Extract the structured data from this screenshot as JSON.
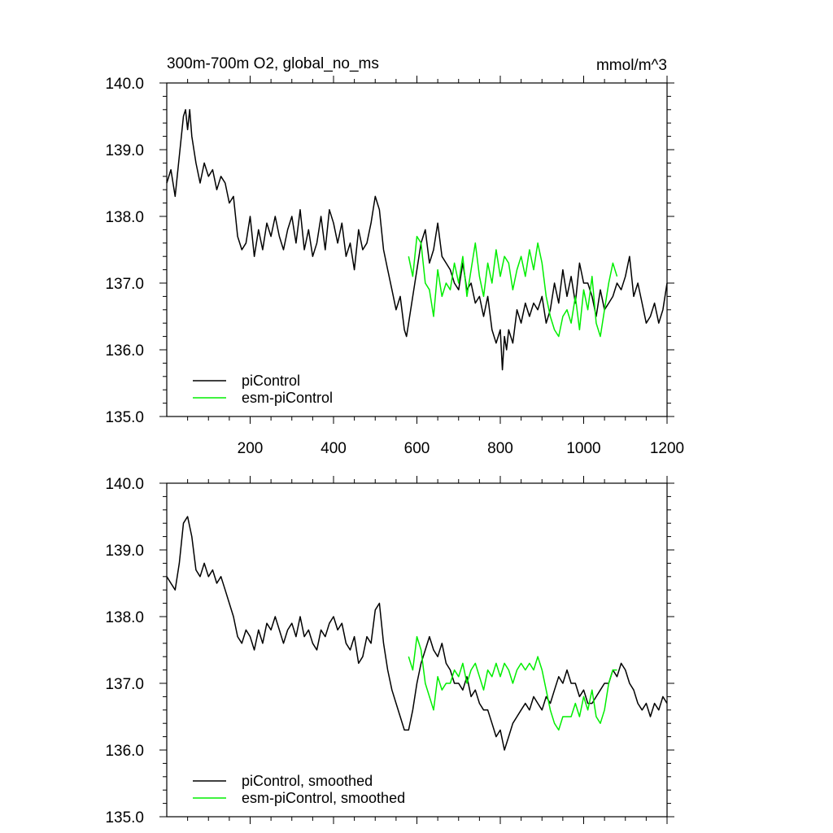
{
  "chart_data": [
    {
      "type": "line",
      "title": "300m-700m O2, global_no_ms",
      "units": "mmol/m^3",
      "xlabel": "",
      "ylabel": "",
      "xlim": [
        0,
        1200
      ],
      "ylim": [
        135.0,
        140.0
      ],
      "xticks": [
        200,
        400,
        600,
        800,
        1000,
        1200
      ],
      "xtick_labels": [
        "200",
        "400",
        "600",
        "800",
        "1000",
        "1200"
      ],
      "yticks": [
        135,
        136,
        137,
        138,
        139,
        140
      ],
      "ytick_labels": [
        "135.0",
        "136.0",
        "137.0",
        "138.0",
        "139.0",
        "140.0"
      ],
      "legend_placement": "bottom-left",
      "grid": false,
      "series": [
        {
          "name": "piControl",
          "color": "#000000",
          "x": [
            0,
            10,
            20,
            30,
            40,
            45,
            50,
            55,
            60,
            70,
            80,
            90,
            100,
            110,
            120,
            130,
            140,
            150,
            160,
            170,
            180,
            190,
            200,
            210,
            220,
            230,
            240,
            250,
            260,
            270,
            280,
            290,
            300,
            310,
            320,
            330,
            340,
            350,
            360,
            370,
            380,
            390,
            400,
            410,
            420,
            430,
            440,
            450,
            460,
            470,
            480,
            490,
            500,
            510,
            520,
            530,
            540,
            550,
            560,
            570,
            575,
            580,
            590,
            600,
            610,
            620,
            630,
            640,
            650,
            660,
            670,
            680,
            690,
            700,
            710,
            720,
            730,
            740,
            750,
            760,
            770,
            780,
            790,
            800,
            805,
            810,
            815,
            820,
            830,
            840,
            850,
            860,
            870,
            880,
            890,
            900,
            910,
            920,
            930,
            940,
            950,
            960,
            970,
            980,
            990,
            1000,
            1010,
            1020,
            1030,
            1040,
            1050,
            1060,
            1070,
            1080,
            1090,
            1100,
            1110,
            1120,
            1130,
            1140,
            1150,
            1160,
            1170,
            1180,
            1190,
            1200
          ],
          "values": [
            138.5,
            138.7,
            138.3,
            138.9,
            139.5,
            139.6,
            139.3,
            139.6,
            139.2,
            138.8,
            138.5,
            138.8,
            138.6,
            138.7,
            138.4,
            138.6,
            138.5,
            138.2,
            138.3,
            137.7,
            137.5,
            137.6,
            138.0,
            137.4,
            137.8,
            137.5,
            137.9,
            137.7,
            138.0,
            137.7,
            137.5,
            137.8,
            138.0,
            137.6,
            138.1,
            137.5,
            137.8,
            137.4,
            137.6,
            138.0,
            137.5,
            138.1,
            137.9,
            137.6,
            137.9,
            137.4,
            137.6,
            137.2,
            137.8,
            137.5,
            137.6,
            137.9,
            138.3,
            138.1,
            137.5,
            137.2,
            136.9,
            136.6,
            136.8,
            136.3,
            136.2,
            136.4,
            136.8,
            137.2,
            137.6,
            137.8,
            137.3,
            137.5,
            137.9,
            137.4,
            137.3,
            137.2,
            137.0,
            136.9,
            137.3,
            136.9,
            137.0,
            136.7,
            136.8,
            136.5,
            136.8,
            136.3,
            136.1,
            136.3,
            135.7,
            136.2,
            136.0,
            136.3,
            136.1,
            136.6,
            136.4,
            136.7,
            136.5,
            136.7,
            136.6,
            136.8,
            136.4,
            136.6,
            137.0,
            136.7,
            137.2,
            136.8,
            137.1,
            136.7,
            137.3,
            137.0,
            137.0,
            136.8,
            136.5,
            136.9,
            136.6,
            136.7,
            136.8,
            137.0,
            136.9,
            137.1,
            137.4,
            136.8,
            137.0,
            136.7,
            136.4,
            136.5,
            136.7,
            136.4,
            136.6,
            137.0
          ]
        },
        {
          "name": "esm-piControl",
          "color": "#00ee00",
          "x": [
            580,
            590,
            600,
            610,
            620,
            630,
            640,
            650,
            660,
            670,
            680,
            690,
            700,
            710,
            720,
            730,
            740,
            750,
            760,
            770,
            780,
            790,
            800,
            810,
            820,
            830,
            840,
            850,
            860,
            870,
            880,
            890,
            900,
            910,
            920,
            930,
            940,
            950,
            960,
            970,
            980,
            990,
            1000,
            1010,
            1020,
            1030,
            1040,
            1050,
            1060,
            1070,
            1080
          ],
          "values": [
            137.4,
            137.1,
            137.7,
            137.6,
            137.0,
            136.9,
            136.5,
            137.2,
            136.8,
            137.0,
            136.9,
            137.3,
            137.0,
            137.4,
            136.8,
            137.2,
            137.6,
            137.1,
            136.8,
            137.3,
            137.0,
            137.5,
            137.1,
            137.4,
            137.3,
            136.9,
            137.2,
            137.4,
            137.1,
            137.5,
            137.2,
            137.6,
            137.3,
            136.8,
            136.5,
            136.3,
            136.2,
            136.5,
            136.6,
            136.4,
            136.8,
            136.3,
            136.9,
            136.6,
            137.1,
            136.4,
            136.2,
            136.6,
            137.0,
            137.3,
            137.1
          ]
        }
      ]
    },
    {
      "type": "line",
      "title": "",
      "xlabel": "",
      "ylabel": "",
      "xlim": [
        0,
        1200
      ],
      "ylim": [
        135.0,
        140.0
      ],
      "yticks": [
        135,
        136,
        137,
        138,
        139,
        140
      ],
      "ytick_labels": [
        "135.0",
        "136.0",
        "137.0",
        "138.0",
        "139.0",
        "140.0"
      ],
      "legend_placement": "bottom-left",
      "grid": false,
      "series": [
        {
          "name": "piControl, smoothed",
          "color": "#000000",
          "x": [
            0,
            10,
            20,
            30,
            40,
            50,
            60,
            70,
            80,
            90,
            100,
            110,
            120,
            130,
            140,
            150,
            160,
            170,
            180,
            190,
            200,
            210,
            220,
            230,
            240,
            250,
            260,
            270,
            280,
            290,
            300,
            310,
            320,
            330,
            340,
            350,
            360,
            370,
            380,
            390,
            400,
            410,
            420,
            430,
            440,
            450,
            460,
            470,
            480,
            490,
            500,
            510,
            520,
            530,
            540,
            550,
            560,
            570,
            580,
            590,
            600,
            610,
            620,
            630,
            640,
            650,
            660,
            670,
            680,
            690,
            700,
            710,
            720,
            730,
            740,
            750,
            760,
            770,
            780,
            790,
            800,
            810,
            820,
            830,
            840,
            850,
            860,
            870,
            880,
            890,
            900,
            910,
            920,
            930,
            940,
            950,
            960,
            970,
            980,
            990,
            1000,
            1010,
            1020,
            1030,
            1040,
            1050,
            1060,
            1070,
            1080,
            1090,
            1100,
            1110,
            1120,
            1130,
            1140,
            1150,
            1160,
            1170,
            1180,
            1190,
            1200
          ],
          "values": [
            138.6,
            138.5,
            138.4,
            138.8,
            139.4,
            139.5,
            139.2,
            138.7,
            138.6,
            138.8,
            138.6,
            138.7,
            138.5,
            138.6,
            138.4,
            138.2,
            138.0,
            137.7,
            137.6,
            137.8,
            137.7,
            137.5,
            137.8,
            137.6,
            137.9,
            137.8,
            138.0,
            137.8,
            137.6,
            137.8,
            137.9,
            137.7,
            138.0,
            137.7,
            137.8,
            137.6,
            137.5,
            137.8,
            137.7,
            137.9,
            138.0,
            137.8,
            137.9,
            137.6,
            137.5,
            137.7,
            137.3,
            137.4,
            137.7,
            137.6,
            138.1,
            138.2,
            137.6,
            137.2,
            136.9,
            136.7,
            136.5,
            136.3,
            136.3,
            136.6,
            137.0,
            137.3,
            137.5,
            137.7,
            137.5,
            137.4,
            137.6,
            137.3,
            137.2,
            137.0,
            137.0,
            136.9,
            137.1,
            136.8,
            136.9,
            136.7,
            136.6,
            136.6,
            136.4,
            136.2,
            136.3,
            136.0,
            136.2,
            136.4,
            136.5,
            136.6,
            136.7,
            136.6,
            136.8,
            136.7,
            136.6,
            136.8,
            136.7,
            136.9,
            137.1,
            137.0,
            137.2,
            137.0,
            137.0,
            136.8,
            136.9,
            136.7,
            136.7,
            136.8,
            136.9,
            137.0,
            137.0,
            137.2,
            137.1,
            137.3,
            137.2,
            137.0,
            136.9,
            136.7,
            136.6,
            136.7,
            136.5,
            136.7,
            136.6,
            136.8,
            136.7
          ]
        },
        {
          "name": "esm-piControl, smoothed",
          "color": "#00ee00",
          "x": [
            580,
            590,
            600,
            610,
            620,
            630,
            640,
            650,
            660,
            670,
            680,
            690,
            700,
            710,
            720,
            730,
            740,
            750,
            760,
            770,
            780,
            790,
            800,
            810,
            820,
            830,
            840,
            850,
            860,
            870,
            880,
            890,
            900,
            910,
            920,
            930,
            940,
            950,
            960,
            970,
            980,
            990,
            1000,
            1010,
            1020,
            1030,
            1040,
            1050,
            1060,
            1070,
            1080
          ],
          "values": [
            137.4,
            137.2,
            137.7,
            137.5,
            137.0,
            136.8,
            136.6,
            137.1,
            136.9,
            137.0,
            137.0,
            137.2,
            137.1,
            137.3,
            137.0,
            137.2,
            137.3,
            137.1,
            136.9,
            137.2,
            137.1,
            137.3,
            137.1,
            137.3,
            137.2,
            137.0,
            137.2,
            137.3,
            137.2,
            137.3,
            137.2,
            137.4,
            137.2,
            136.9,
            136.6,
            136.4,
            136.3,
            136.5,
            136.5,
            136.5,
            136.7,
            136.5,
            136.8,
            136.6,
            136.9,
            136.5,
            136.4,
            136.6,
            137.0,
            137.2,
            137.2
          ]
        }
      ]
    }
  ]
}
